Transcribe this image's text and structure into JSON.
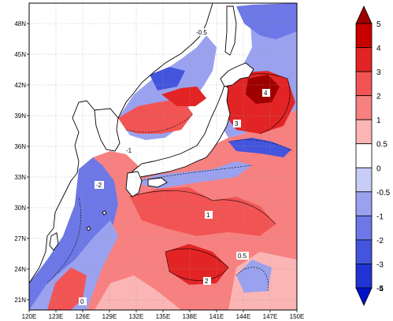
{
  "map": {
    "x_tick_labels": [
      "120E",
      "123E",
      "126E",
      "129E",
      "132E",
      "135E",
      "138E",
      "141E",
      "144E",
      "147E",
      "150E"
    ],
    "y_tick_labels": [
      "21N",
      "24N",
      "27N",
      "30N",
      "33N",
      "36N",
      "39N",
      "42N",
      "45N",
      "48N"
    ],
    "x_range_deg": [
      120,
      150
    ],
    "y_range_deg": [
      20,
      50
    ],
    "contour_labels": [
      "-0.5",
      "-1",
      "-2",
      "0",
      "0.5",
      "1",
      "2",
      "3",
      "4"
    ]
  },
  "colorbar": {
    "levels": [
      "5",
      "4",
      "3",
      "2",
      "1",
      "0.5",
      "0",
      "-0.5",
      "-1",
      "-2",
      "-3",
      "-4",
      "-5"
    ],
    "colors": [
      "#9e0000",
      "#c80000",
      "#e32424",
      "#f25454",
      "#f78080",
      "#fbb5b5",
      "#ffffff",
      "#c7cdf5",
      "#9aa2ef",
      "#6d78e6",
      "#4455dd",
      "#2233d5",
      "#0011cc"
    ]
  },
  "colors": {
    "land": "#ffffff",
    "coast": "#000000",
    "grid": "#9a9a9a"
  }
}
